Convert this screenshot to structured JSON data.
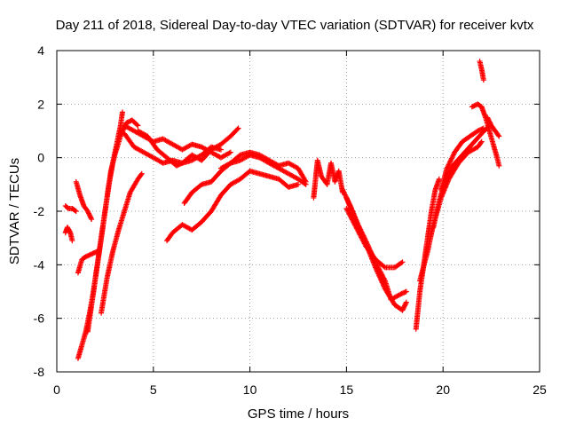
{
  "chart_data": {
    "type": "scatter",
    "title": "Day 211 of 2018, Sidereal Day-to-day VTEC variation (SDTVAR) for receiver kvtx",
    "xlabel": "GPS time / hours",
    "ylabel": "SDTVAR / TECUs",
    "xlim": [
      0,
      25
    ],
    "ylim": [
      -8,
      4
    ],
    "xticks": [
      "0",
      "5",
      "10",
      "15",
      "20",
      "25"
    ],
    "yticks": [
      "-8",
      "-6",
      "-4",
      "-2",
      "0",
      "2",
      "4"
    ],
    "xtick_values": [
      0,
      5,
      10,
      15,
      20,
      25
    ],
    "ytick_values": [
      -8,
      -6,
      -4,
      -2,
      0,
      2,
      4
    ],
    "grid": true,
    "marker": "+",
    "color": "#ff0000",
    "series": [
      {
        "name": "s1",
        "points": [
          [
            0.45,
            -1.8
          ],
          [
            0.6,
            -1.9
          ],
          [
            0.8,
            -1.9
          ],
          [
            1.0,
            -2.0
          ]
        ]
      },
      {
        "name": "s2",
        "points": [
          [
            0.45,
            -2.8
          ],
          [
            0.55,
            -2.6
          ],
          [
            0.7,
            -2.8
          ],
          [
            0.8,
            -3.1
          ]
        ]
      },
      {
        "name": "s3",
        "points": [
          [
            1.0,
            -0.9
          ],
          [
            1.2,
            -1.4
          ],
          [
            1.4,
            -1.8
          ],
          [
            1.6,
            -2.0
          ],
          [
            1.8,
            -2.3
          ]
        ]
      },
      {
        "name": "s4",
        "points": [
          [
            1.1,
            -4.3
          ],
          [
            1.3,
            -3.8
          ],
          [
            1.5,
            -3.7
          ],
          [
            1.8,
            -3.6
          ],
          [
            2.1,
            -3.5
          ]
        ]
      },
      {
        "name": "s5",
        "points": [
          [
            1.1,
            -7.5
          ],
          [
            1.3,
            -7.0
          ],
          [
            1.5,
            -6.5
          ],
          [
            1.7,
            -5.8
          ],
          [
            1.9,
            -5.0
          ],
          [
            2.1,
            -4.0
          ],
          [
            2.3,
            -3.0
          ],
          [
            2.5,
            -2.0
          ],
          [
            2.7,
            -1.0
          ],
          [
            2.9,
            -0.2
          ],
          [
            3.1,
            0.5
          ],
          [
            3.3,
            1.2
          ],
          [
            3.4,
            1.7
          ]
        ]
      },
      {
        "name": "s6",
        "points": [
          [
            1.6,
            -6.5
          ],
          [
            1.8,
            -5.5
          ],
          [
            2.0,
            -4.5
          ],
          [
            2.2,
            -3.5
          ],
          [
            2.4,
            -2.5
          ],
          [
            2.6,
            -1.5
          ],
          [
            2.8,
            -0.5
          ],
          [
            3.0,
            0.1
          ],
          [
            3.3,
            0.8
          ],
          [
            3.6,
            1.3
          ],
          [
            3.9,
            1.4
          ],
          [
            4.2,
            1.2
          ]
        ]
      },
      {
        "name": "s7",
        "points": [
          [
            2.3,
            -5.8
          ],
          [
            2.6,
            -4.5
          ],
          [
            2.9,
            -3.5
          ],
          [
            3.2,
            -2.7
          ],
          [
            3.5,
            -2.0
          ],
          [
            3.8,
            -1.3
          ],
          [
            4.2,
            -0.8
          ],
          [
            4.4,
            -0.6
          ]
        ]
      },
      {
        "name": "s8",
        "points": [
          [
            3.5,
            1.2
          ],
          [
            4.0,
            1.0
          ],
          [
            4.5,
            0.8
          ],
          [
            5.0,
            0.6
          ],
          [
            5.5,
            0.7
          ],
          [
            6.0,
            0.5
          ],
          [
            6.5,
            0.3
          ],
          [
            7.0,
            0.5
          ],
          [
            7.5,
            0.4
          ],
          [
            8.0,
            0.2
          ],
          [
            8.5,
            0.0
          ],
          [
            9.0,
            0.2
          ]
        ]
      },
      {
        "name": "s9",
        "points": [
          [
            3.5,
            0.9
          ],
          [
            4.0,
            0.4
          ],
          [
            4.5,
            0.2
          ],
          [
            5.0,
            0.0
          ],
          [
            5.5,
            -0.2
          ],
          [
            6.0,
            -0.1
          ],
          [
            6.5,
            -0.2
          ],
          [
            7.0,
            0.1
          ],
          [
            7.5,
            -0.1
          ],
          [
            8.0,
            0.3
          ],
          [
            8.5,
            0.5
          ],
          [
            9.0,
            0.8
          ],
          [
            9.4,
            1.1
          ]
        ]
      },
      {
        "name": "s10",
        "points": [
          [
            4.2,
            1.0
          ],
          [
            4.7,
            0.8
          ],
          [
            5.2,
            0.3
          ],
          [
            5.7,
            0.0
          ],
          [
            6.2,
            -0.3
          ],
          [
            6.5,
            -0.2
          ],
          [
            7.0,
            -0.1
          ],
          [
            7.5,
            0.1
          ],
          [
            8.0,
            0.4
          ],
          [
            8.5,
            0.3
          ]
        ]
      },
      {
        "name": "s11",
        "points": [
          [
            6.6,
            -1.7
          ],
          [
            7.0,
            -1.3
          ],
          [
            7.5,
            -1.0
          ],
          [
            8.0,
            -0.9
          ],
          [
            8.5,
            -0.5
          ],
          [
            9.0,
            -0.2
          ],
          [
            9.5,
            -0.1
          ],
          [
            10.0,
            0.1
          ],
          [
            10.5,
            0.0
          ],
          [
            11.0,
            -0.2
          ],
          [
            11.5,
            -0.4
          ],
          [
            12.0,
            -0.6
          ],
          [
            12.5,
            -0.8
          ],
          [
            12.9,
            -1.0
          ]
        ]
      },
      {
        "name": "s12",
        "points": [
          [
            8.5,
            -0.4
          ],
          [
            9.0,
            -0.2
          ],
          [
            9.5,
            0.1
          ],
          [
            10.0,
            0.2
          ],
          [
            10.5,
            0.1
          ],
          [
            11.0,
            -0.1
          ],
          [
            11.5,
            -0.3
          ],
          [
            12.0,
            -0.2
          ],
          [
            12.5,
            -0.4
          ],
          [
            12.9,
            -0.9
          ]
        ]
      },
      {
        "name": "s13",
        "points": [
          [
            5.7,
            -3.1
          ],
          [
            6.0,
            -2.8
          ],
          [
            6.5,
            -2.5
          ],
          [
            7.0,
            -2.7
          ],
          [
            7.5,
            -2.4
          ],
          [
            8.0,
            -2.0
          ],
          [
            8.5,
            -1.4
          ],
          [
            9.0,
            -1.0
          ],
          [
            9.5,
            -0.8
          ],
          [
            10.0,
            -0.5
          ],
          [
            10.5,
            -0.6
          ],
          [
            11.0,
            -0.7
          ],
          [
            11.5,
            -0.8
          ],
          [
            12.0,
            -1.1
          ],
          [
            12.5,
            -1.0
          ]
        ]
      },
      {
        "name": "s14",
        "points": [
          [
            13.3,
            -1.5
          ],
          [
            13.4,
            -0.8
          ],
          [
            13.5,
            -0.1
          ],
          [
            13.7,
            -0.7
          ],
          [
            14.0,
            -1.0
          ],
          [
            14.2,
            -0.2
          ],
          [
            14.4,
            -0.9
          ],
          [
            14.6,
            -0.5
          ],
          [
            14.8,
            -1.3
          ]
        ]
      },
      {
        "name": "s15",
        "points": [
          [
            14.8,
            -1.2
          ],
          [
            15.2,
            -1.8
          ],
          [
            15.6,
            -2.5
          ],
          [
            16.0,
            -3.1
          ],
          [
            16.5,
            -3.9
          ],
          [
            17.0,
            -4.6
          ],
          [
            17.3,
            -5.3
          ],
          [
            17.8,
            -5.1
          ],
          [
            18.1,
            -5.0
          ]
        ]
      },
      {
        "name": "s16",
        "points": [
          [
            15.0,
            -1.5
          ],
          [
            15.5,
            -2.4
          ],
          [
            16.0,
            -3.2
          ],
          [
            16.5,
            -4.1
          ],
          [
            17.0,
            -4.9
          ],
          [
            17.5,
            -5.5
          ],
          [
            17.9,
            -5.7
          ],
          [
            18.1,
            -5.4
          ]
        ]
      },
      {
        "name": "s17",
        "points": [
          [
            15.0,
            -1.9
          ],
          [
            15.5,
            -2.6
          ],
          [
            16.0,
            -3.3
          ],
          [
            16.5,
            -3.8
          ],
          [
            17.0,
            -4.1
          ],
          [
            17.5,
            -4.1
          ],
          [
            17.9,
            -3.9
          ]
        ]
      },
      {
        "name": "s18",
        "points": [
          [
            18.6,
            -6.4
          ],
          [
            18.8,
            -5.0
          ],
          [
            19.0,
            -4.0
          ],
          [
            19.2,
            -3.0
          ],
          [
            19.4,
            -2.0
          ],
          [
            19.6,
            -1.2
          ],
          [
            19.8,
            -0.8
          ]
        ]
      },
      {
        "name": "s19",
        "points": [
          [
            18.8,
            -4.6
          ],
          [
            19.2,
            -3.5
          ],
          [
            19.5,
            -2.5
          ],
          [
            19.9,
            -1.5
          ],
          [
            20.3,
            -0.8
          ],
          [
            20.8,
            -0.2
          ],
          [
            21.3,
            0.2
          ],
          [
            21.8,
            0.4
          ],
          [
            22.0,
            0.6
          ]
        ]
      },
      {
        "name": "s20",
        "points": [
          [
            19.5,
            -2.6
          ],
          [
            19.8,
            -1.6
          ],
          [
            20.1,
            -0.9
          ],
          [
            20.5,
            -0.3
          ],
          [
            21.0,
            0.1
          ],
          [
            21.5,
            0.5
          ],
          [
            22.0,
            0.9
          ],
          [
            22.4,
            1.2
          ]
        ]
      },
      {
        "name": "s21",
        "points": [
          [
            19.9,
            -1.2
          ],
          [
            20.2,
            -0.4
          ],
          [
            20.6,
            0.2
          ],
          [
            21.0,
            0.6
          ],
          [
            21.4,
            0.8
          ],
          [
            21.8,
            1.0
          ],
          [
            22.1,
            1.1
          ]
        ]
      },
      {
        "name": "s22",
        "points": [
          [
            21.5,
            1.9
          ],
          [
            21.8,
            2.0
          ],
          [
            22.0,
            1.9
          ],
          [
            22.2,
            1.5
          ],
          [
            22.4,
            1.0
          ],
          [
            22.6,
            0.5
          ],
          [
            22.8,
            0.0
          ],
          [
            22.9,
            -0.3
          ]
        ]
      },
      {
        "name": "s23",
        "points": [
          [
            21.9,
            3.6
          ],
          [
            22.0,
            3.3
          ],
          [
            22.1,
            2.9
          ]
        ]
      },
      {
        "name": "s24",
        "points": [
          [
            22.3,
            1.5
          ],
          [
            22.5,
            1.2
          ],
          [
            22.7,
            1.0
          ],
          [
            22.9,
            0.8
          ]
        ]
      }
    ]
  }
}
